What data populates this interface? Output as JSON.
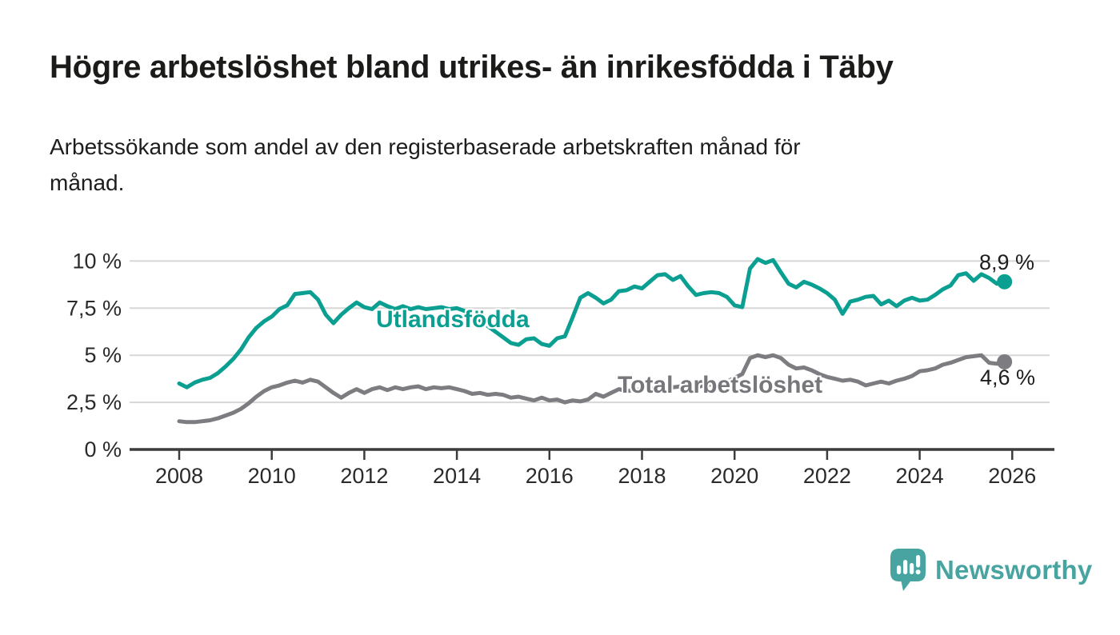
{
  "header": {
    "title": "Högre arbetslöshet bland utrikes- än inrikesfödda i Täby",
    "subtitle": "Arbetssökande som andel av den registerbaserade arbetskraften månad för\nmånad."
  },
  "chart_data": {
    "type": "line",
    "title": "Högre arbetslöshet bland utrikes- än inrikesfödda i Täby",
    "subtitle": "Arbetssökande som andel av den registerbaserade arbetskraften månad för månad.",
    "unit": "%",
    "x_start_year": 2008,
    "x_step_years": 0.1666667,
    "x_tick_labels": [
      "2008",
      "2010",
      "2012",
      "2014",
      "2016",
      "2018",
      "2020",
      "2022",
      "2024",
      "2026"
    ],
    "y_tick_labels": [
      "0 %",
      "2,5 %",
      "5 %",
      "7,5 %",
      "10 %"
    ],
    "y_tick_values": [
      0,
      2.5,
      5,
      7.5,
      10
    ],
    "ylim": [
      0,
      10.6
    ],
    "xlim": [
      2006.9,
      2026.9
    ],
    "grid": "horizontal",
    "legend_position": "inline-labels",
    "series": [
      {
        "name": "Utlandsfödda",
        "color": "#0b9f92",
        "end_label": "8,9 %",
        "end_value": 8.9,
        "values": [
          3.5,
          3.3,
          3.55,
          3.7,
          3.8,
          4.05,
          4.4,
          4.8,
          5.3,
          5.95,
          6.45,
          6.8,
          7.05,
          7.45,
          7.65,
          8.25,
          8.3,
          8.35,
          7.95,
          7.15,
          6.7,
          7.15,
          7.5,
          7.8,
          7.55,
          7.45,
          7.8,
          7.6,
          7.45,
          7.6,
          7.45,
          7.55,
          7.45,
          7.5,
          7.55,
          7.45,
          7.5,
          7.35,
          7.1,
          6.85,
          6.55,
          6.25,
          5.95,
          5.65,
          5.55,
          5.85,
          5.9,
          5.6,
          5.5,
          5.9,
          6.0,
          7.0,
          8.05,
          8.3,
          8.05,
          7.75,
          7.95,
          8.4,
          8.45,
          8.65,
          8.55,
          8.9,
          9.25,
          9.3,
          9.0,
          9.2,
          8.65,
          8.2,
          8.3,
          8.35,
          8.3,
          8.1,
          7.65,
          7.55,
          9.6,
          10.1,
          9.9,
          10.05,
          9.4,
          8.8,
          8.6,
          8.9,
          8.75,
          8.55,
          8.3,
          7.95,
          7.2,
          7.85,
          7.95,
          8.1,
          8.15,
          7.7,
          7.9,
          7.6,
          7.9,
          8.05,
          7.9,
          7.95,
          8.2,
          8.5,
          8.7,
          9.25,
          9.35,
          8.95,
          9.3,
          9.1,
          8.8,
          8.9
        ]
      },
      {
        "name": "Total arbetslöshet",
        "color": "#7c7c81",
        "end_label": "4,6 %",
        "end_value": 4.6,
        "values": [
          1.5,
          1.45,
          1.45,
          1.5,
          1.55,
          1.65,
          1.8,
          1.95,
          2.15,
          2.45,
          2.8,
          3.1,
          3.3,
          3.4,
          3.55,
          3.65,
          3.55,
          3.7,
          3.6,
          3.3,
          3.0,
          2.75,
          3.0,
          3.2,
          3.0,
          3.2,
          3.3,
          3.15,
          3.3,
          3.2,
          3.3,
          3.35,
          3.2,
          3.3,
          3.25,
          3.3,
          3.2,
          3.1,
          2.95,
          3.0,
          2.9,
          2.95,
          2.9,
          2.75,
          2.8,
          2.7,
          2.6,
          2.75,
          2.6,
          2.65,
          2.5,
          2.6,
          2.55,
          2.65,
          2.95,
          2.8,
          3.0,
          3.2,
          3.1,
          3.15,
          3.2,
          3.25,
          3.2,
          3.3,
          3.3,
          3.35,
          3.4,
          3.3,
          3.4,
          3.45,
          3.5,
          3.6,
          3.8,
          4.0,
          4.85,
          5.0,
          4.9,
          5.0,
          4.85,
          4.5,
          4.3,
          4.35,
          4.2,
          4.0,
          3.85,
          3.75,
          3.65,
          3.7,
          3.6,
          3.4,
          3.5,
          3.6,
          3.5,
          3.65,
          3.75,
          3.9,
          4.15,
          4.2,
          4.3,
          4.5,
          4.6,
          4.75,
          4.9,
          4.95,
          5.0,
          4.6,
          4.55,
          4.65
        ]
      }
    ]
  },
  "branding": {
    "logo_text": "Newsworthy",
    "logo_icon": "bar-chart-speech-bubble-icon",
    "logo_color": "#48a4a1"
  },
  "colors": {
    "background": "#ffffff",
    "teal_line": "#0b9f92",
    "gray_line": "#7c7c81",
    "gridline": "#d7d7d7",
    "axis": "#3c3c3c",
    "text": "#1d1d1d"
  }
}
